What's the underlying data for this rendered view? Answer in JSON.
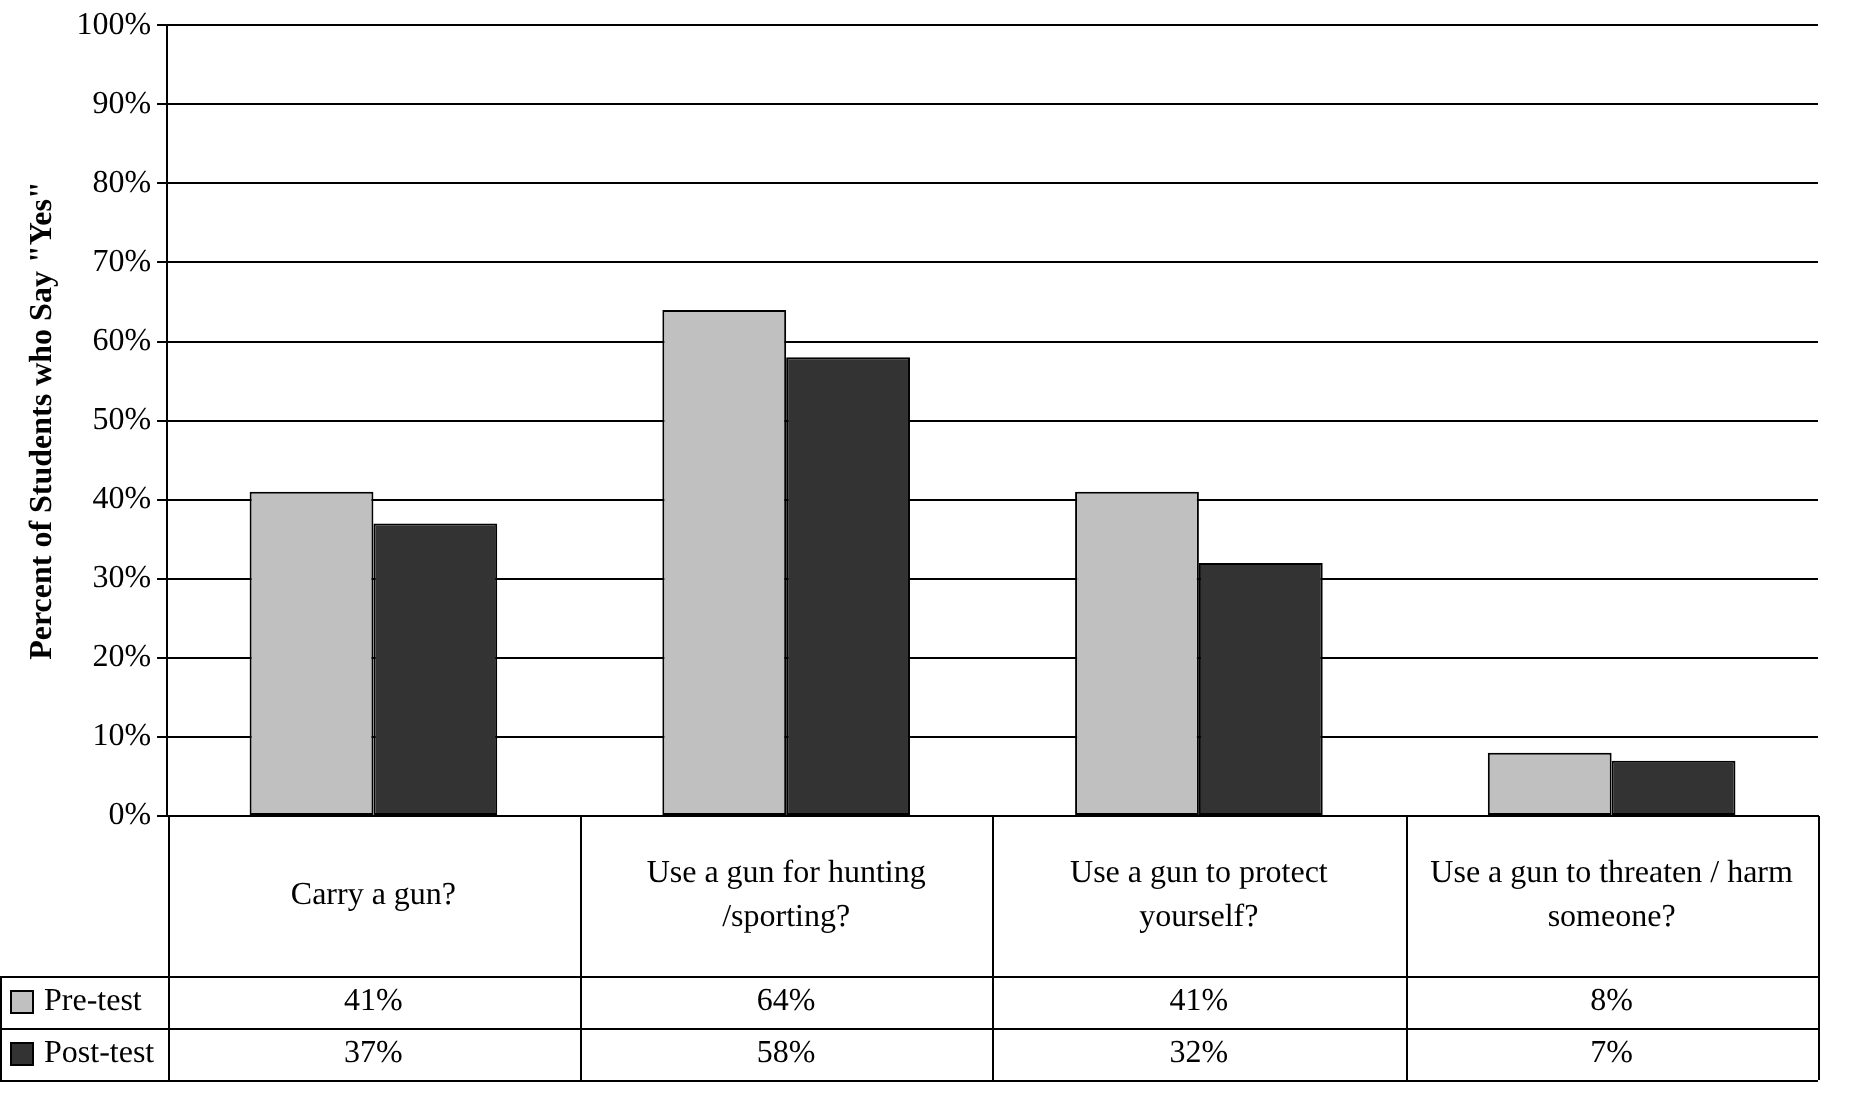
{
  "chart_data": {
    "type": "bar",
    "ylabel": "Percent of Students who Say \"Yes\"",
    "categories": [
      "Carry a gun?",
      "Use a gun for hunting /sporting?",
      "Use a gun to protect yourself?",
      "Use a gun to threaten / harm someone?"
    ],
    "series": [
      {
        "name": "Pre-test",
        "color": "#c0c0c0",
        "values": [
          41,
          64,
          41,
          8
        ],
        "value_labels": [
          "41%",
          "64%",
          "41%",
          "8%"
        ]
      },
      {
        "name": "Post-test",
        "color": "#333333",
        "values": [
          37,
          58,
          32,
          7
        ],
        "value_labels": [
          "37%",
          "58%",
          "32%",
          "7%"
        ]
      }
    ],
    "ylim": [
      0,
      100
    ],
    "yticks": [
      {
        "value": 0,
        "label": "0%"
      },
      {
        "value": 10,
        "label": "10%"
      },
      {
        "value": 20,
        "label": "20%"
      },
      {
        "value": 30,
        "label": "30%"
      },
      {
        "value": 40,
        "label": "40%"
      },
      {
        "value": 50,
        "label": "50%"
      },
      {
        "value": 60,
        "label": "60%"
      },
      {
        "value": 70,
        "label": "70%"
      },
      {
        "value": 80,
        "label": "80%"
      },
      {
        "value": 90,
        "label": "90%"
      },
      {
        "value": 100,
        "label": "100%"
      }
    ],
    "grid": "y",
    "legend": "bottom left",
    "data_labels": true
  }
}
